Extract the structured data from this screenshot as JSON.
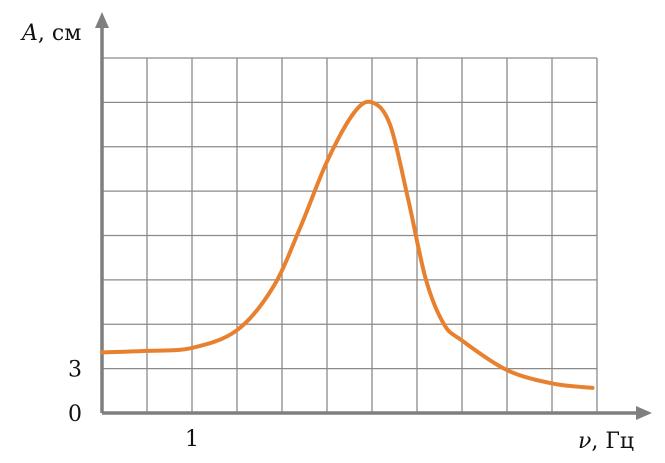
{
  "chart_data": {
    "type": "line",
    "title": "",
    "xlabel_var": "ν",
    "xlabel_unit": ", Гц",
    "ylabel_var": "A",
    "ylabel_unit": ", см",
    "xlim": [
      0,
      5.5
    ],
    "ylim": [
      0,
      24
    ],
    "x_grid_step": 0.5,
    "y_grid_step": 3,
    "grid": true,
    "x_tick_labels": [
      {
        "value": 1,
        "label": "1"
      }
    ],
    "y_tick_labels": [
      {
        "value": 0,
        "label": "0"
      },
      {
        "value": 3,
        "label": "3"
      }
    ],
    "series": [
      {
        "color": "#e8812f",
        "points": [
          [
            0,
            4.1
          ],
          [
            0.5,
            4.2
          ],
          [
            1,
            4.4
          ],
          [
            1.5,
            5.6
          ],
          [
            1.9,
            8.5
          ],
          [
            2.2,
            12.5
          ],
          [
            2.5,
            17
          ],
          [
            2.8,
            20.3
          ],
          [
            3,
            21
          ],
          [
            3.2,
            19.5
          ],
          [
            3.4,
            14.5
          ],
          [
            3.6,
            9
          ],
          [
            3.8,
            6
          ],
          [
            4,
            4.9
          ],
          [
            4.5,
            2.9
          ],
          [
            5,
            2.0
          ],
          [
            5.45,
            1.7
          ]
        ]
      }
    ],
    "grid_color": "#8a8a8a",
    "axis_color": "#7f7f7f"
  }
}
